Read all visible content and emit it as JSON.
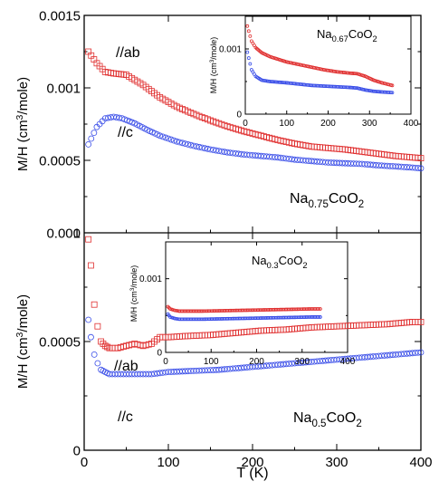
{
  "colors": {
    "ab": "#e03030",
    "c": "#3a4ee8",
    "axis": "#000000"
  },
  "chart_data": [
    {
      "id": "top-main",
      "type": "scatter",
      "ylabel": "M/H (cm³/mole)",
      "xlim": [
        0,
        400
      ],
      "ylim": [
        0,
        0.0015
      ],
      "yticks": [
        "0",
        "0.0005",
        "0.001",
        "0.0015"
      ],
      "ytick_values": [
        0,
        0.0005,
        0.001,
        0.0015
      ],
      "xticks": [
        0,
        100,
        200,
        300,
        400
      ],
      "marker": "square-c-circle",
      "annotations": {
        "ab": "//ab",
        "c": "//c"
      },
      "formula": {
        "base1": "Na",
        "sub1": "0.75",
        "base2": "CoO",
        "sub2": "2"
      },
      "series": [
        {
          "key": "ab",
          "label": "//ab",
          "x": [
            5,
            15,
            25,
            35,
            50,
            70,
            90,
            110,
            130,
            150,
            170,
            190,
            210,
            230,
            250,
            270,
            290,
            310,
            330,
            350,
            370,
            390,
            400
          ],
          "y": [
            0.00125,
            0.00117,
            0.00111,
            0.0011,
            0.00109,
            0.00102,
            0.000935,
            0.00087,
            0.00082,
            0.000775,
            0.000735,
            0.0007,
            0.00067,
            0.00064,
            0.000615,
            0.000595,
            0.000585,
            0.000575,
            0.00056,
            0.000545,
            0.00053,
            0.00052,
            0.000515
          ]
        },
        {
          "key": "c",
          "label": "//c",
          "x": [
            5,
            15,
            25,
            35,
            45,
            60,
            75,
            90,
            110,
            130,
            150,
            170,
            190,
            210,
            230,
            250,
            270,
            290,
            310,
            330,
            350,
            370,
            390,
            400
          ],
          "y": [
            0.00061,
            0.00073,
            0.00079,
            0.0008,
            0.00079,
            0.000755,
            0.00071,
            0.00067,
            0.00063,
            0.0006,
            0.000575,
            0.000555,
            0.00054,
            0.00053,
            0.00052,
            0.000505,
            0.000495,
            0.000485,
            0.00048,
            0.000475,
            0.000465,
            0.000458,
            0.00045,
            0.000445
          ]
        }
      ]
    },
    {
      "id": "top-inset",
      "type": "scatter",
      "ylabel": "M/H (cm³/mole)",
      "xlim": [
        0,
        400
      ],
      "ylim": [
        0,
        0.0015
      ],
      "yticks": [
        "0",
        "0.001"
      ],
      "ytick_values": [
        0,
        0.001
      ],
      "xticks": [
        0,
        100,
        200,
        300,
        400
      ],
      "formula": {
        "base1": "Na",
        "sub1": "0.67",
        "base2": "CoO",
        "sub2": "2"
      },
      "series": [
        {
          "key": "ab",
          "x": [
            5,
            15,
            25,
            40,
            60,
            80,
            100,
            130,
            160,
            190,
            220,
            250,
            270,
            290,
            310,
            330,
            355
          ],
          "y": [
            0.00135,
            0.00112,
            0.00102,
            0.00094,
            0.00088,
            0.00084,
            0.0008,
            0.00076,
            0.00072,
            0.00068,
            0.00065,
            0.00063,
            0.00062,
            0.00058,
            0.00052,
            0.00048,
            0.00044
          ]
        },
        {
          "key": "c",
          "x": [
            5,
            15,
            25,
            40,
            60,
            80,
            100,
            130,
            160,
            190,
            220,
            250,
            270,
            290,
            310,
            330,
            355
          ],
          "y": [
            0.00095,
            0.00068,
            0.00058,
            0.00052,
            0.0005,
            0.00049,
            0.00048,
            0.00046,
            0.00044,
            0.00043,
            0.00042,
            0.00041,
            0.0004,
            0.00037,
            0.00035,
            0.00034,
            0.00033
          ]
        }
      ]
    },
    {
      "id": "bottom-main",
      "type": "scatter",
      "ylabel": "M/H (cm³/mole)",
      "xlabel": "T (K)",
      "xlim": [
        0,
        400
      ],
      "ylim": [
        0,
        0.001
      ],
      "yticks": [
        "0",
        "0.0005",
        "0.001"
      ],
      "ytick_values": [
        0,
        0.0005,
        0.001
      ],
      "xticks": [
        0,
        100,
        200,
        300,
        400
      ],
      "annotations": {
        "ab": "//ab",
        "c": "//c"
      },
      "formula": {
        "base1": "Na",
        "sub1": "0.5",
        "base2": "CoO",
        "sub2": "2"
      },
      "series": [
        {
          "key": "ab",
          "x": [
            5,
            8,
            12,
            16,
            20,
            25,
            30,
            40,
            50,
            60,
            70,
            80,
            90,
            100,
            120,
            150,
            180,
            210,
            240,
            270,
            300,
            330,
            360,
            390,
            400
          ],
          "y": [
            0.00097,
            0.00085,
            0.00067,
            0.00057,
            0.0005,
            0.00048,
            0.00047,
            0.00047,
            0.00048,
            0.00049,
            0.00048,
            0.00049,
            0.00052,
            0.00052,
            0.000525,
            0.00053,
            0.00054,
            0.00055,
            0.000555,
            0.000565,
            0.00057,
            0.000575,
            0.00058,
            0.00059,
            0.00059
          ]
        },
        {
          "key": "c",
          "x": [
            5,
            8,
            12,
            16,
            20,
            25,
            30,
            40,
            50,
            60,
            80,
            100,
            130,
            160,
            190,
            220,
            250,
            280,
            310,
            340,
            370,
            400
          ],
          "y": [
            0.0006,
            0.00052,
            0.00044,
            0.0004,
            0.00037,
            0.00036,
            0.00035,
            0.00035,
            0.00035,
            0.00035,
            0.00035,
            0.00036,
            0.000365,
            0.00037,
            0.00038,
            0.00039,
            0.0004,
            0.00041,
            0.00042,
            0.00043,
            0.00044,
            0.00045
          ]
        }
      ]
    },
    {
      "id": "bottom-inset",
      "type": "scatter",
      "ylabel": "M/H (cm³/mole)",
      "xlim": [
        0,
        400
      ],
      "ylim": [
        0,
        0.0015
      ],
      "yticks": [
        "0",
        "0.001"
      ],
      "ytick_values": [
        0,
        0.001
      ],
      "xticks": [
        0,
        100,
        200,
        300,
        400
      ],
      "formula": {
        "base1": "Na",
        "sub1": "0.3",
        "base2": "CoO",
        "sub2": "2"
      },
      "series": [
        {
          "key": "ab",
          "x": [
            5,
            10,
            20,
            30,
            50,
            80,
            120,
            160,
            200,
            240,
            280,
            320,
            340
          ],
          "y": [
            0.00062,
            0.00059,
            0.00057,
            0.00056,
            0.00056,
            0.00056,
            0.000565,
            0.00057,
            0.000575,
            0.00058,
            0.000585,
            0.00059,
            0.00059
          ]
        },
        {
          "key": "c",
          "x": [
            5,
            10,
            20,
            30,
            50,
            80,
            120,
            160,
            200,
            240,
            280,
            320,
            340
          ],
          "y": [
            0.00052,
            0.00048,
            0.00046,
            0.00045,
            0.00045,
            0.00045,
            0.000455,
            0.00046,
            0.000465,
            0.00047,
            0.000475,
            0.00048,
            0.00048
          ]
        }
      ]
    }
  ]
}
